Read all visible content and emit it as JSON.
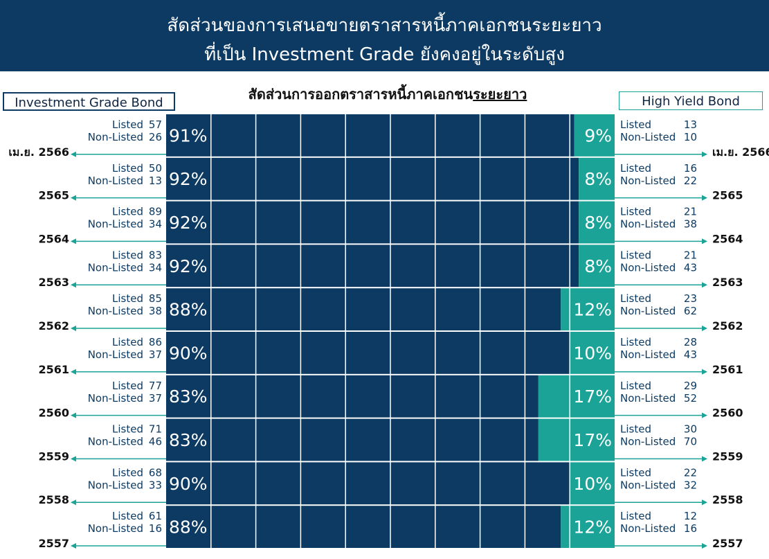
{
  "header": {
    "line1": "สัดส่วนของการเสนอขายตราสารหนี้ภาคเอกชนระยะยาว",
    "line2": "ที่เป็น Investment Grade ยังคงอยู่ในระดับสูง"
  },
  "subtitle": {
    "prefix": "สัดส่วนการออกตราสารหนี้ภาคเอกชน",
    "underlined": "ระยะยาว"
  },
  "legend": {
    "investment_grade": "Investment Grade Bond",
    "high_yield": "High Yield Bond"
  },
  "labels": {
    "listed": "Listed",
    "non_listed": "Non-Listed"
  },
  "colors": {
    "header_bg": "#0c3a62",
    "investment_grade": "#0c3a62",
    "high_yield": "#1aa396",
    "arrow": "#1aa396"
  },
  "chart_data": {
    "type": "bar",
    "orientation": "horizontal",
    "stacked": true,
    "percent_scale": true,
    "categories": [
      "เม.ย. 2566",
      "2565",
      "2564",
      "2563",
      "2562",
      "2561",
      "2560",
      "2559",
      "2558",
      "2557"
    ],
    "series": [
      {
        "name": "Investment Grade Bond",
        "values": [
          91,
          92,
          92,
          92,
          88,
          90,
          83,
          83,
          90,
          88
        ],
        "labels": [
          "91%",
          "92%",
          "92%",
          "92%",
          "88%",
          "90%",
          "83%",
          "83%",
          "90%",
          "88%"
        ],
        "listed": [
          57,
          50,
          89,
          83,
          85,
          86,
          77,
          71,
          68,
          61
        ],
        "non_listed": [
          26,
          13,
          34,
          34,
          38,
          37,
          37,
          46,
          33,
          16
        ]
      },
      {
        "name": "High Yield Bond",
        "values": [
          9,
          8,
          8,
          8,
          12,
          10,
          17,
          17,
          10,
          12
        ],
        "labels": [
          "9%",
          "8%",
          "8%",
          "8%",
          "12%",
          "10%",
          "17%",
          "17%",
          "10%",
          "12%"
        ],
        "listed": [
          13,
          16,
          21,
          21,
          23,
          28,
          29,
          30,
          22,
          12
        ],
        "non_listed": [
          10,
          22,
          38,
          43,
          62,
          43,
          52,
          70,
          32,
          16
        ]
      }
    ],
    "xlim": [
      0,
      100
    ]
  }
}
